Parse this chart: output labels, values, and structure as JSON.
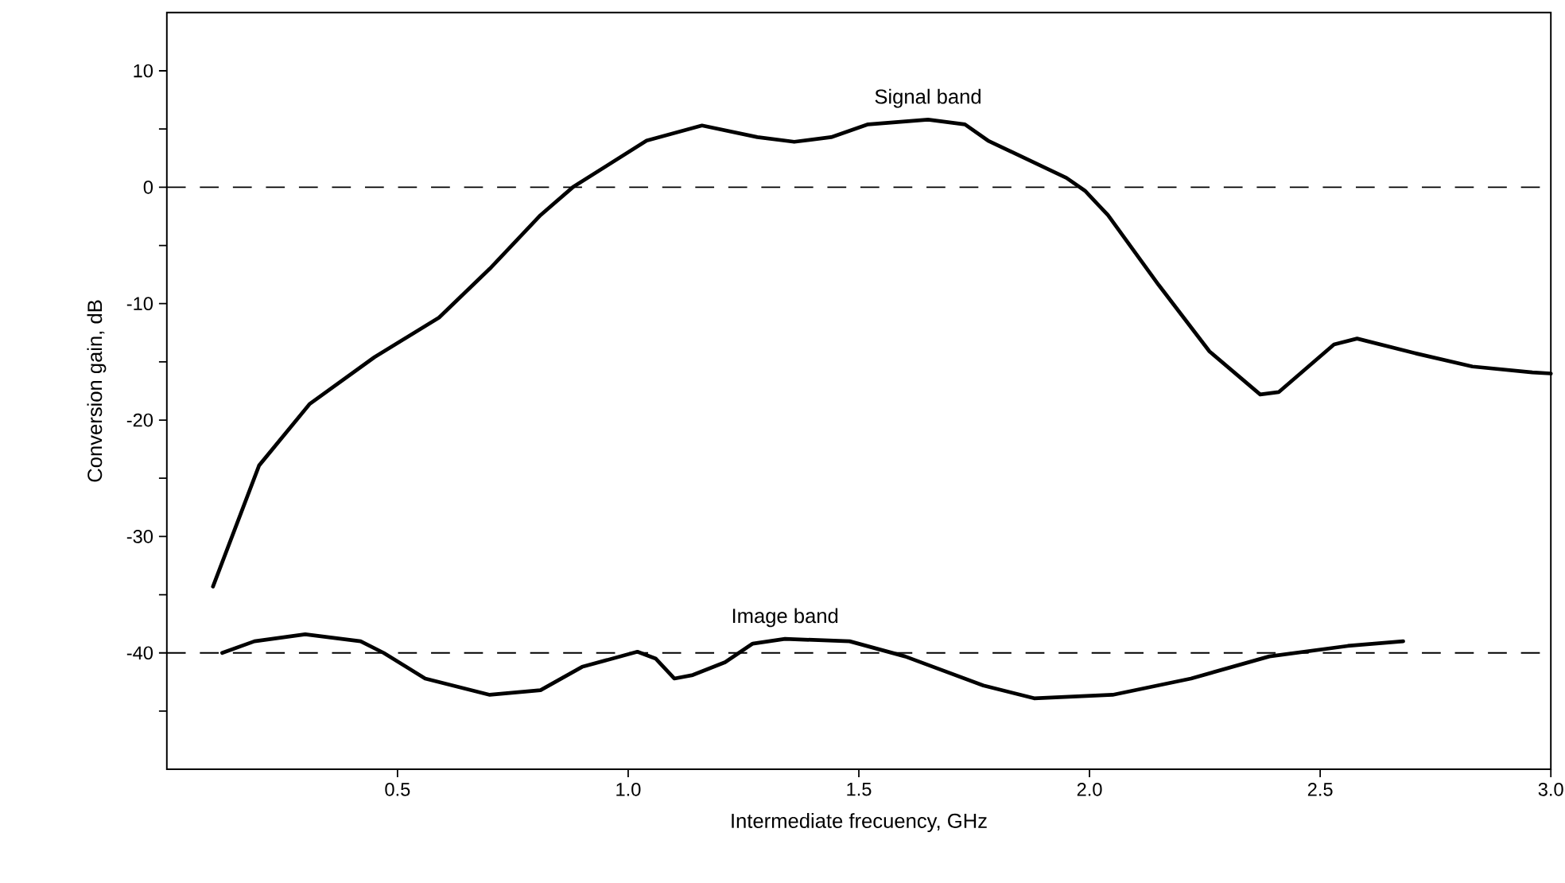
{
  "chart_data": {
    "type": "line",
    "xlabel": "Intermediate frecuency,  GHz",
    "ylabel": "Conversion gain, dB",
    "xlim": [
      0,
      3.0
    ],
    "ylim": [
      -50,
      15
    ],
    "xticks": [
      {
        "value": 0.5,
        "label": "0.5"
      },
      {
        "value": 1.0,
        "label": "1.0"
      },
      {
        "value": 1.5,
        "label": "1.5"
      },
      {
        "value": 2.0,
        "label": "2.0"
      },
      {
        "value": 2.5,
        "label": "2.5"
      },
      {
        "value": 3.0,
        "label": "3.0"
      }
    ],
    "yticks": [
      {
        "value": -45,
        "label": null
      },
      -40,
      {
        "value": -35,
        "label": null
      },
      -30,
      {
        "value": -25,
        "label": null
      },
      -20,
      {
        "value": -15,
        "label": null
      },
      -10,
      {
        "value": -5,
        "label": null
      },
      0,
      {
        "value": 5,
        "label": null
      },
      10
    ],
    "grid": false,
    "legend": false,
    "marker": "none",
    "line_style": "solid",
    "series": [
      {
        "name": "Signal band",
        "color": "#000000",
        "x": [
          0.1,
          0.2,
          0.31,
          0.45,
          0.59,
          0.7,
          0.81,
          0.88,
          1.04,
          1.16,
          1.28,
          1.36,
          1.44,
          1.52,
          1.65,
          1.73,
          1.78,
          1.95,
          1.99,
          2.04,
          2.15,
          2.26,
          2.37,
          2.41,
          2.53,
          2.58,
          2.71,
          2.83,
          2.96,
          3.0
        ],
        "values": [
          -34.3,
          -23.9,
          -18.6,
          -14.6,
          -11.2,
          -7.0,
          -2.4,
          0,
          4.0,
          5.3,
          4.3,
          3.9,
          4.3,
          5.4,
          5.8,
          5.4,
          4.0,
          0.8,
          -0.3,
          -2.4,
          -8.4,
          -14.1,
          -17.8,
          -17.6,
          -13.5,
          -13.0,
          -14.3,
          -15.4,
          -15.9,
          -16.0
        ]
      },
      {
        "name": "Image band",
        "color": "#000000",
        "x": [
          0.12,
          0.19,
          0.3,
          0.42,
          0.47,
          0.56,
          0.7,
          0.81,
          0.9,
          1.02,
          1.06,
          1.1,
          1.14,
          1.21,
          1.27,
          1.34,
          1.48,
          1.6,
          1.77,
          1.88,
          2.05,
          2.22,
          2.39,
          2.56,
          2.68
        ],
        "values": [
          -40.0,
          -39.0,
          -38.4,
          -39.0,
          -40.0,
          -42.2,
          -43.6,
          -43.2,
          -41.2,
          -39.9,
          -40.5,
          -42.2,
          -41.9,
          -40.8,
          -39.2,
          -38.8,
          -39.0,
          -40.3,
          -42.8,
          -43.9,
          -43.6,
          -42.2,
          -40.3,
          -39.4,
          -39.0
        ]
      }
    ],
    "ref_lines": [
      {
        "axis": "y",
        "value": 0,
        "line_style": "dashed",
        "color": "#000000"
      },
      {
        "axis": "y",
        "value": -40,
        "line_style": "dashed",
        "color": "#000000"
      }
    ]
  }
}
